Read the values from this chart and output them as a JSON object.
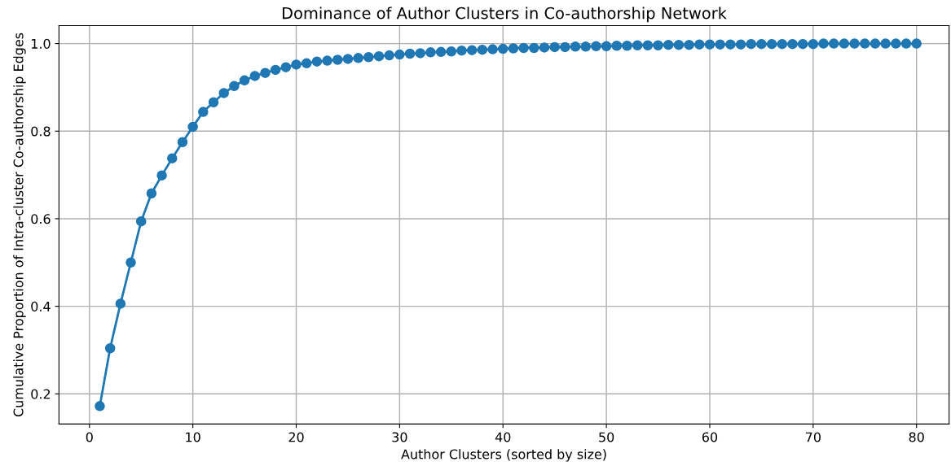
{
  "chart_data": {
    "type": "line",
    "title": "Dominance of Author Clusters in Co-authorship Network",
    "xlabel": "Author Clusters (sorted by size)",
    "ylabel": "Cumulative Proportion of Intra-cluster Co-authorship Edges",
    "x": [
      1,
      2,
      3,
      4,
      5,
      6,
      7,
      8,
      9,
      10,
      11,
      12,
      13,
      14,
      15,
      16,
      17,
      18,
      19,
      20,
      21,
      22,
      23,
      24,
      25,
      26,
      27,
      28,
      29,
      30,
      31,
      32,
      33,
      34,
      35,
      36,
      37,
      38,
      39,
      40,
      41,
      42,
      43,
      44,
      45,
      46,
      47,
      48,
      49,
      50,
      51,
      52,
      53,
      54,
      55,
      56,
      57,
      58,
      59,
      60,
      61,
      62,
      63,
      64,
      65,
      66,
      67,
      68,
      69,
      70,
      71,
      72,
      73,
      74,
      75,
      76,
      77,
      78,
      79,
      80
    ],
    "series": [
      {
        "color": "#1f77b4",
        "values": [
          0.172,
          0.304,
          0.406,
          0.5,
          0.594,
          0.658,
          0.699,
          0.738,
          0.775,
          0.81,
          0.844,
          0.866,
          0.887,
          0.903,
          0.916,
          0.926,
          0.933,
          0.94,
          0.946,
          0.952,
          0.955,
          0.959,
          0.961,
          0.963,
          0.965,
          0.967,
          0.969,
          0.971,
          0.973,
          0.975,
          0.977,
          0.978,
          0.98,
          0.981,
          0.982,
          0.984,
          0.985,
          0.986,
          0.987,
          0.988,
          0.989,
          0.99,
          0.99,
          0.991,
          0.992,
          0.992,
          0.993,
          0.993,
          0.994,
          0.994,
          0.995,
          0.995,
          0.996,
          0.996,
          0.996,
          0.997,
          0.997,
          0.997,
          0.998,
          0.998,
          0.998,
          0.998,
          0.998,
          0.999,
          0.999,
          0.999,
          0.999,
          0.999,
          0.999,
          0.999,
          1.0,
          1.0,
          1.0,
          1.0,
          1.0,
          1.0,
          1.0,
          1.0,
          1.0,
          1.0
        ]
      }
    ],
    "xlim": [
      -2.95,
      83.15
    ],
    "xticks": [
      0,
      10,
      20,
      30,
      40,
      50,
      60,
      70,
      80
    ],
    "ylim": [
      0.131,
      1.041
    ],
    "yticks": [
      {
        "value": 0.2,
        "label": "0.2"
      },
      {
        "value": 0.4,
        "label": "0.4"
      },
      {
        "value": 0.6,
        "label": "0.6"
      },
      {
        "value": 0.8,
        "label": "0.8"
      },
      {
        "value": 1.0,
        "label": "1.0"
      }
    ],
    "grid": true,
    "marker": "circle",
    "line_style": "solid"
  }
}
